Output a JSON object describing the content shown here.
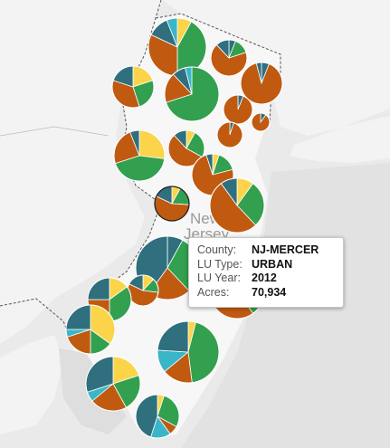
{
  "colors": {
    "background": "#eaeaea",
    "land": "#f6f6f6",
    "land_shade": "#e2e2e2",
    "water": "#dcdcdc",
    "border": "#555555",
    "slice_teal": "#2f6f7e",
    "slice_yellow": "#fbd44a",
    "slice_green": "#32a04e",
    "slice_orange": "#bf5a10",
    "slice_cyan": "#3ab6c8"
  },
  "map": {
    "state_label_line1": "New",
    "state_label_line2": "Jersey"
  },
  "tooltip": {
    "rows": [
      {
        "label": "County:",
        "value": "NJ-MERCER"
      },
      {
        "label": "LU Type:",
        "value": "URBAN"
      },
      {
        "label": "LU Year:",
        "value": "2012"
      },
      {
        "label": "Acres:",
        "value": "70,934"
      }
    ]
  },
  "pies": [
    {
      "name": "sussex",
      "slices": [
        {
          "c": "slice_yellow",
          "v": 0.08
        },
        {
          "c": "slice_green",
          "v": 0.42
        },
        {
          "c": "slice_orange",
          "v": 0.32
        },
        {
          "c": "slice_teal",
          "v": 0.12
        },
        {
          "c": "slice_cyan",
          "v": 0.06
        }
      ]
    },
    {
      "name": "passaic",
      "slices": [
        {
          "c": "slice_teal",
          "v": 0.06
        },
        {
          "c": "slice_green",
          "v": 0.14
        },
        {
          "c": "slice_orange",
          "v": 0.68
        },
        {
          "c": "slice_teal",
          "v": 0.12
        }
      ]
    },
    {
      "name": "bergen",
      "slices": [
        {
          "c": "slice_teal",
          "v": 0.06
        },
        {
          "c": "slice_orange",
          "v": 0.9
        },
        {
          "c": "slice_teal",
          "v": 0.04
        }
      ]
    },
    {
      "name": "warren",
      "slices": [
        {
          "c": "slice_yellow",
          "v": 0.2
        },
        {
          "c": "slice_green",
          "v": 0.25
        },
        {
          "c": "slice_orange",
          "v": 0.35
        },
        {
          "c": "slice_teal",
          "v": 0.2
        }
      ]
    },
    {
      "name": "morris",
      "slices": [
        {
          "c": "slice_green",
          "v": 0.7
        },
        {
          "c": "slice_orange",
          "v": 0.18
        },
        {
          "c": "slice_teal",
          "v": 0.08
        },
        {
          "c": "slice_cyan",
          "v": 0.04
        }
      ]
    },
    {
      "name": "essex",
      "slices": [
        {
          "c": "slice_teal",
          "v": 0.06
        },
        {
          "c": "slice_orange",
          "v": 0.94
        }
      ]
    },
    {
      "name": "hudson",
      "slices": [
        {
          "c": "slice_teal",
          "v": 0.1
        },
        {
          "c": "slice_orange",
          "v": 0.9
        }
      ]
    },
    {
      "name": "union",
      "slices": [
        {
          "c": "slice_teal",
          "v": 0.05
        },
        {
          "c": "slice_orange",
          "v": 0.95
        }
      ]
    },
    {
      "name": "hunterdon",
      "slices": [
        {
          "c": "slice_yellow",
          "v": 0.27
        },
        {
          "c": "slice_green",
          "v": 0.43
        },
        {
          "c": "slice_orange",
          "v": 0.24
        },
        {
          "c": "slice_teal",
          "v": 0.06
        }
      ]
    },
    {
      "name": "somerset",
      "slices": [
        {
          "c": "slice_yellow",
          "v": 0.08
        },
        {
          "c": "slice_green",
          "v": 0.25
        },
        {
          "c": "slice_orange",
          "v": 0.55
        },
        {
          "c": "slice_teal",
          "v": 0.12
        }
      ]
    },
    {
      "name": "middlesex",
      "slices": [
        {
          "c": "slice_yellow",
          "v": 0.05
        },
        {
          "c": "slice_green",
          "v": 0.16
        },
        {
          "c": "slice_orange",
          "v": 0.74
        },
        {
          "c": "slice_teal",
          "v": 0.05
        }
      ]
    },
    {
      "name": "mercer",
      "highlight": true,
      "slices": [
        {
          "c": "slice_yellow",
          "v": 0.08
        },
        {
          "c": "slice_green",
          "v": 0.18
        },
        {
          "c": "slice_orange",
          "v": 0.56
        },
        {
          "c": "slice_teal",
          "v": 0.18
        }
      ]
    },
    {
      "name": "monmouth",
      "slices": [
        {
          "c": "slice_yellow",
          "v": 0.1
        },
        {
          "c": "slice_green",
          "v": 0.28
        },
        {
          "c": "slice_orange",
          "v": 0.52
        },
        {
          "c": "slice_teal",
          "v": 0.1
        }
      ]
    },
    {
      "name": "burlington",
      "slices": [
        {
          "c": "slice_teal",
          "v": 0.08
        },
        {
          "c": "slice_green",
          "v": 0.3
        },
        {
          "c": "slice_orange",
          "v": 0.22
        },
        {
          "c": "slice_teal",
          "v": 0.4
        }
      ]
    },
    {
      "name": "ocean",
      "slices": [
        {
          "c": "slice_green",
          "v": 0.4
        },
        {
          "c": "slice_orange",
          "v": 0.5
        },
        {
          "c": "slice_teal",
          "v": 0.1
        }
      ]
    },
    {
      "name": "camden",
      "slices": [
        {
          "c": "slice_yellow",
          "v": 0.12
        },
        {
          "c": "slice_green",
          "v": 0.15
        },
        {
          "c": "slice_orange",
          "v": 0.55
        },
        {
          "c": "slice_teal",
          "v": 0.18
        }
      ]
    },
    {
      "name": "gloucester",
      "slices": [
        {
          "c": "slice_yellow",
          "v": 0.15
        },
        {
          "c": "slice_green",
          "v": 0.35
        },
        {
          "c": "slice_orange",
          "v": 0.25
        },
        {
          "c": "slice_teal",
          "v": 0.25
        }
      ]
    },
    {
      "name": "salem",
      "slices": [
        {
          "c": "slice_yellow",
          "v": 0.35
        },
        {
          "c": "slice_green",
          "v": 0.15
        },
        {
          "c": "slice_orange",
          "v": 0.2
        },
        {
          "c": "slice_cyan",
          "v": 0.05
        },
        {
          "c": "slice_teal",
          "v": 0.25
        }
      ]
    },
    {
      "name": "atlantic",
      "slices": [
        {
          "c": "slice_yellow",
          "v": 0.04
        },
        {
          "c": "slice_green",
          "v": 0.44
        },
        {
          "c": "slice_orange",
          "v": 0.16
        },
        {
          "c": "slice_cyan",
          "v": 0.12
        },
        {
          "c": "slice_teal",
          "v": 0.24
        }
      ]
    },
    {
      "name": "cumberland",
      "slices": [
        {
          "c": "slice_yellow",
          "v": 0.2
        },
        {
          "c": "slice_green",
          "v": 0.22
        },
        {
          "c": "slice_orange",
          "v": 0.22
        },
        {
          "c": "slice_cyan",
          "v": 0.06
        },
        {
          "c": "slice_teal",
          "v": 0.3
        }
      ]
    },
    {
      "name": "cape-may",
      "slices": [
        {
          "c": "slice_yellow",
          "v": 0.05
        },
        {
          "c": "slice_green",
          "v": 0.28
        },
        {
          "c": "slice_orange",
          "v": 0.07
        },
        {
          "c": "slice_cyan",
          "v": 0.15
        },
        {
          "c": "slice_teal",
          "v": 0.45
        }
      ]
    }
  ]
}
